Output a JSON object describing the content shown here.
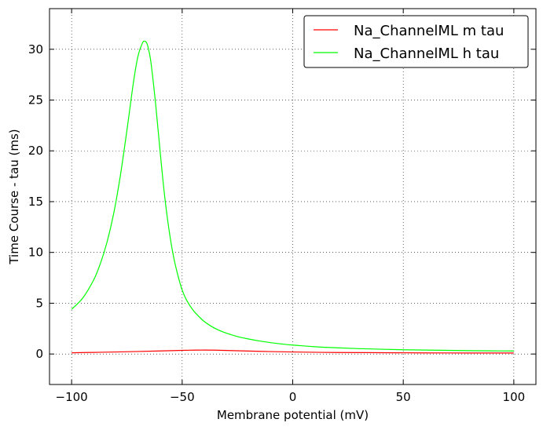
{
  "chart_data": {
    "type": "line",
    "title": "",
    "xlabel": "Membrane potential (mV)",
    "ylabel": "Time Course - tau (ms)",
    "xlim": [
      -110,
      110
    ],
    "ylim": [
      -3,
      34
    ],
    "xticks": [
      -100,
      -50,
      0,
      50,
      100
    ],
    "xtick_labels": [
      "−100",
      "−50",
      "0",
      "50",
      "100"
    ],
    "yticks": [
      0,
      5,
      10,
      15,
      20,
      25,
      30
    ],
    "ytick_labels": [
      "0",
      "5",
      "10",
      "15",
      "20",
      "25",
      "30"
    ],
    "grid": true,
    "legend_position": "top-right",
    "series": [
      {
        "name": "Na_ChannelML m tau",
        "color": "#ff0000",
        "x": [
          -100,
          -90,
          -80,
          -70,
          -60,
          -50,
          -45,
          -40,
          -35,
          -30,
          -20,
          -10,
          0,
          10,
          20,
          40,
          60,
          80,
          100
        ],
        "y": [
          0.12,
          0.16,
          0.2,
          0.25,
          0.3,
          0.36,
          0.38,
          0.39,
          0.38,
          0.35,
          0.29,
          0.24,
          0.2,
          0.17,
          0.15,
          0.13,
          0.11,
          0.1,
          0.1
        ]
      },
      {
        "name": "Na_ChannelML h tau",
        "color": "#00ff00",
        "x": [
          -100,
          -95,
          -90,
          -87,
          -84,
          -81,
          -78,
          -75,
          -72,
          -70,
          -68,
          -67,
          -66,
          -65,
          -64,
          -62,
          -60,
          -58,
          -56,
          -54,
          -52,
          -50,
          -48,
          -45,
          -42,
          -40,
          -37,
          -34,
          -30,
          -25,
          -20,
          -15,
          -10,
          -5,
          0,
          10,
          20,
          30,
          40,
          50,
          60,
          70,
          80,
          90,
          100
        ],
        "y": [
          4.4,
          5.5,
          7.3,
          8.9,
          11.0,
          13.8,
          17.5,
          22.0,
          26.8,
          29.3,
          30.6,
          30.8,
          30.6,
          29.8,
          28.5,
          24.6,
          20.0,
          15.7,
          12.3,
          9.7,
          7.8,
          6.3,
          5.3,
          4.3,
          3.6,
          3.2,
          2.75,
          2.4,
          2.05,
          1.72,
          1.48,
          1.28,
          1.12,
          0.99,
          0.88,
          0.72,
          0.61,
          0.53,
          0.47,
          0.42,
          0.39,
          0.36,
          0.33,
          0.31,
          0.3
        ]
      }
    ]
  }
}
